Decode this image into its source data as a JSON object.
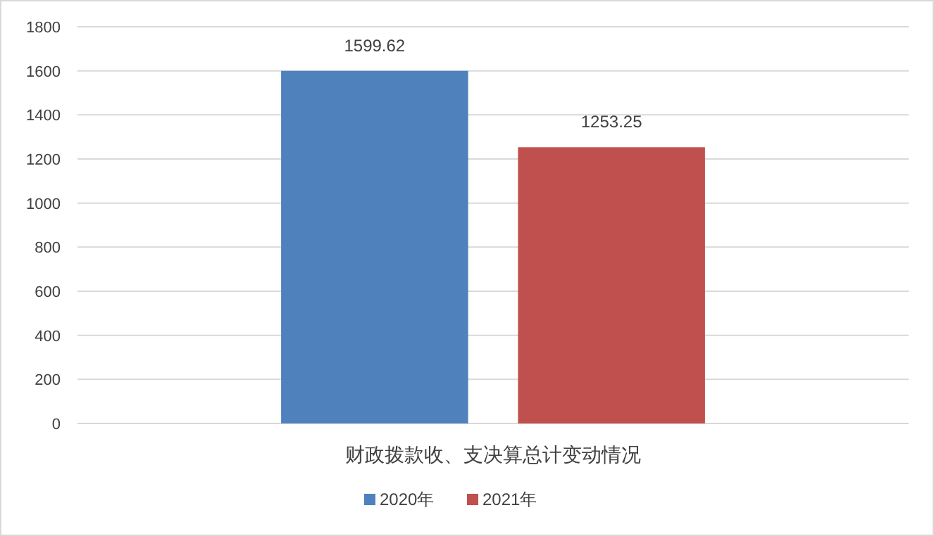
{
  "chart_data": {
    "type": "bar",
    "categories": [
      "财政拨款收、支决算总计变动情况"
    ],
    "series": [
      {
        "name": "2020年",
        "color": "#4f81bd",
        "values": [
          1599.62
        ]
      },
      {
        "name": "2021年",
        "color": "#c0504d",
        "values": [
          1253.25
        ]
      }
    ],
    "ylim": [
      0,
      1800
    ],
    "yticks": [
      0,
      200,
      400,
      600,
      800,
      1000,
      1200,
      1400,
      1600,
      1800
    ],
    "grid": "y",
    "legend": "bottom",
    "data_labels": true
  }
}
